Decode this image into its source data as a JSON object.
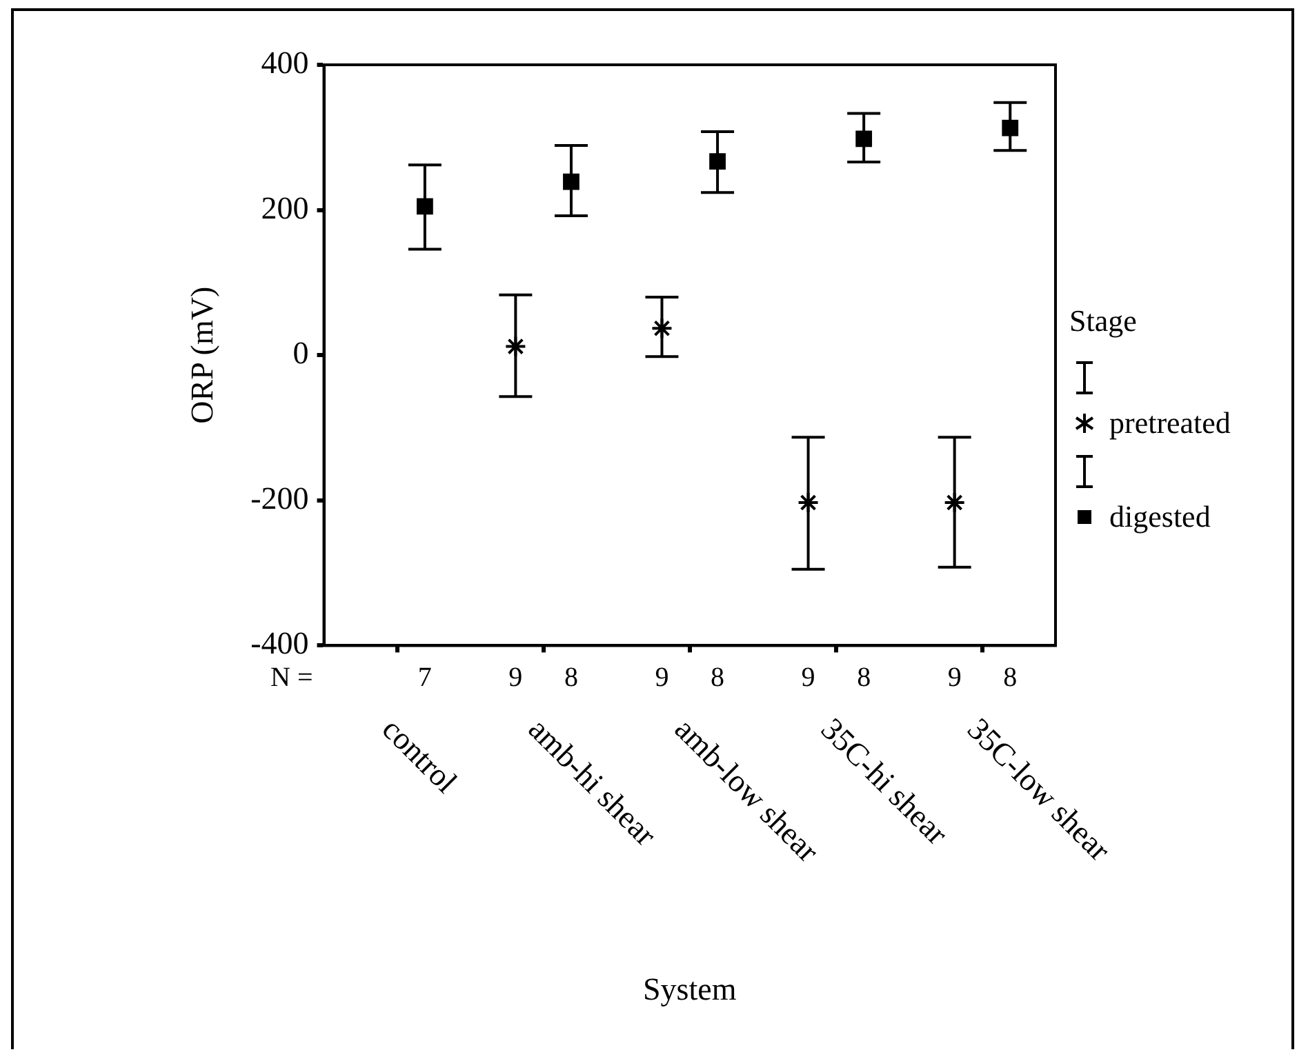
{
  "chart_data": {
    "type": "scatter",
    "xlabel": "System",
    "ylabel": "ORP (mV)",
    "legend_title": "Stage",
    "legend": "right",
    "categories": [
      "control",
      "amb-hi shear",
      "amb-low shear",
      "35C-hi shear",
      "35C-low shear"
    ],
    "ylim": [
      -400,
      400
    ],
    "yticks": [
      -400,
      -200,
      0,
      200,
      400
    ],
    "grid": false,
    "series": [
      {
        "name": "pretreated",
        "color": "#000000",
        "marker": "cross",
        "values": [
          null,
          12,
          37,
          -203,
          -203
        ],
        "errors": [
          null,
          [
            -57,
            83
          ],
          [
            -2,
            80
          ],
          [
            -295,
            -113
          ],
          [
            -292,
            -113
          ]
        ]
      },
      {
        "name": "digested",
        "color": "#000000",
        "marker": "square",
        "values": [
          205,
          239,
          267,
          298,
          313
        ],
        "errors": [
          [
            146,
            262
          ],
          [
            192,
            289
          ],
          [
            224,
            308
          ],
          [
            266,
            333
          ],
          [
            282,
            348
          ]
        ]
      }
    ],
    "annotations": [
      "N =",
      "7",
      "9",
      "8",
      "9",
      "8",
      "9",
      "8",
      "9",
      "8"
    ]
  }
}
